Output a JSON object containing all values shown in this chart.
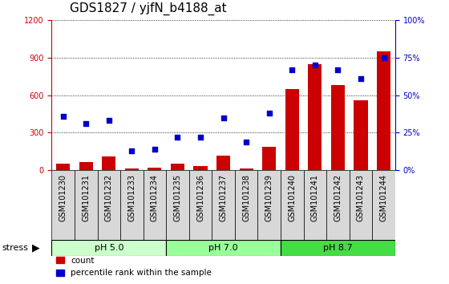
{
  "title": "GDS1827 / yjfN_b4188_at",
  "samples": [
    "GSM101230",
    "GSM101231",
    "GSM101232",
    "GSM101233",
    "GSM101234",
    "GSM101235",
    "GSM101236",
    "GSM101237",
    "GSM101238",
    "GSM101239",
    "GSM101240",
    "GSM101241",
    "GSM101242",
    "GSM101243",
    "GSM101244"
  ],
  "counts": [
    55,
    65,
    110,
    15,
    20,
    55,
    35,
    120,
    15,
    185,
    650,
    850,
    680,
    560,
    950
  ],
  "percentile_pct": [
    36,
    31,
    33,
    13,
    14,
    22,
    22,
    35,
    19,
    38,
    67,
    70,
    67,
    61,
    75
  ],
  "groups": [
    {
      "label": "pH 5.0",
      "start": 0,
      "end": 4,
      "color": "#ccffcc"
    },
    {
      "label": "pH 7.0",
      "start": 5,
      "end": 9,
      "color": "#99ff99"
    },
    {
      "label": "pH 8.7",
      "start": 10,
      "end": 14,
      "color": "#44dd44"
    }
  ],
  "ylim_left": [
    0,
    1200
  ],
  "ylim_right": [
    0,
    100
  ],
  "left_ticks": [
    0,
    300,
    600,
    900,
    1200
  ],
  "right_ticks": [
    0,
    25,
    50,
    75,
    100
  ],
  "bar_color": "#cc0000",
  "scatter_color": "#0000cc",
  "grid_color": "black",
  "cell_bg_color": "#d8d8d8",
  "plot_bg": "#ffffff",
  "left_axis_color": "#cc0000",
  "right_axis_color": "#0000cc",
  "title_fontsize": 11,
  "tick_fontsize": 7,
  "legend_fontsize": 7.5,
  "group_fontsize": 8,
  "stress_fontsize": 8
}
